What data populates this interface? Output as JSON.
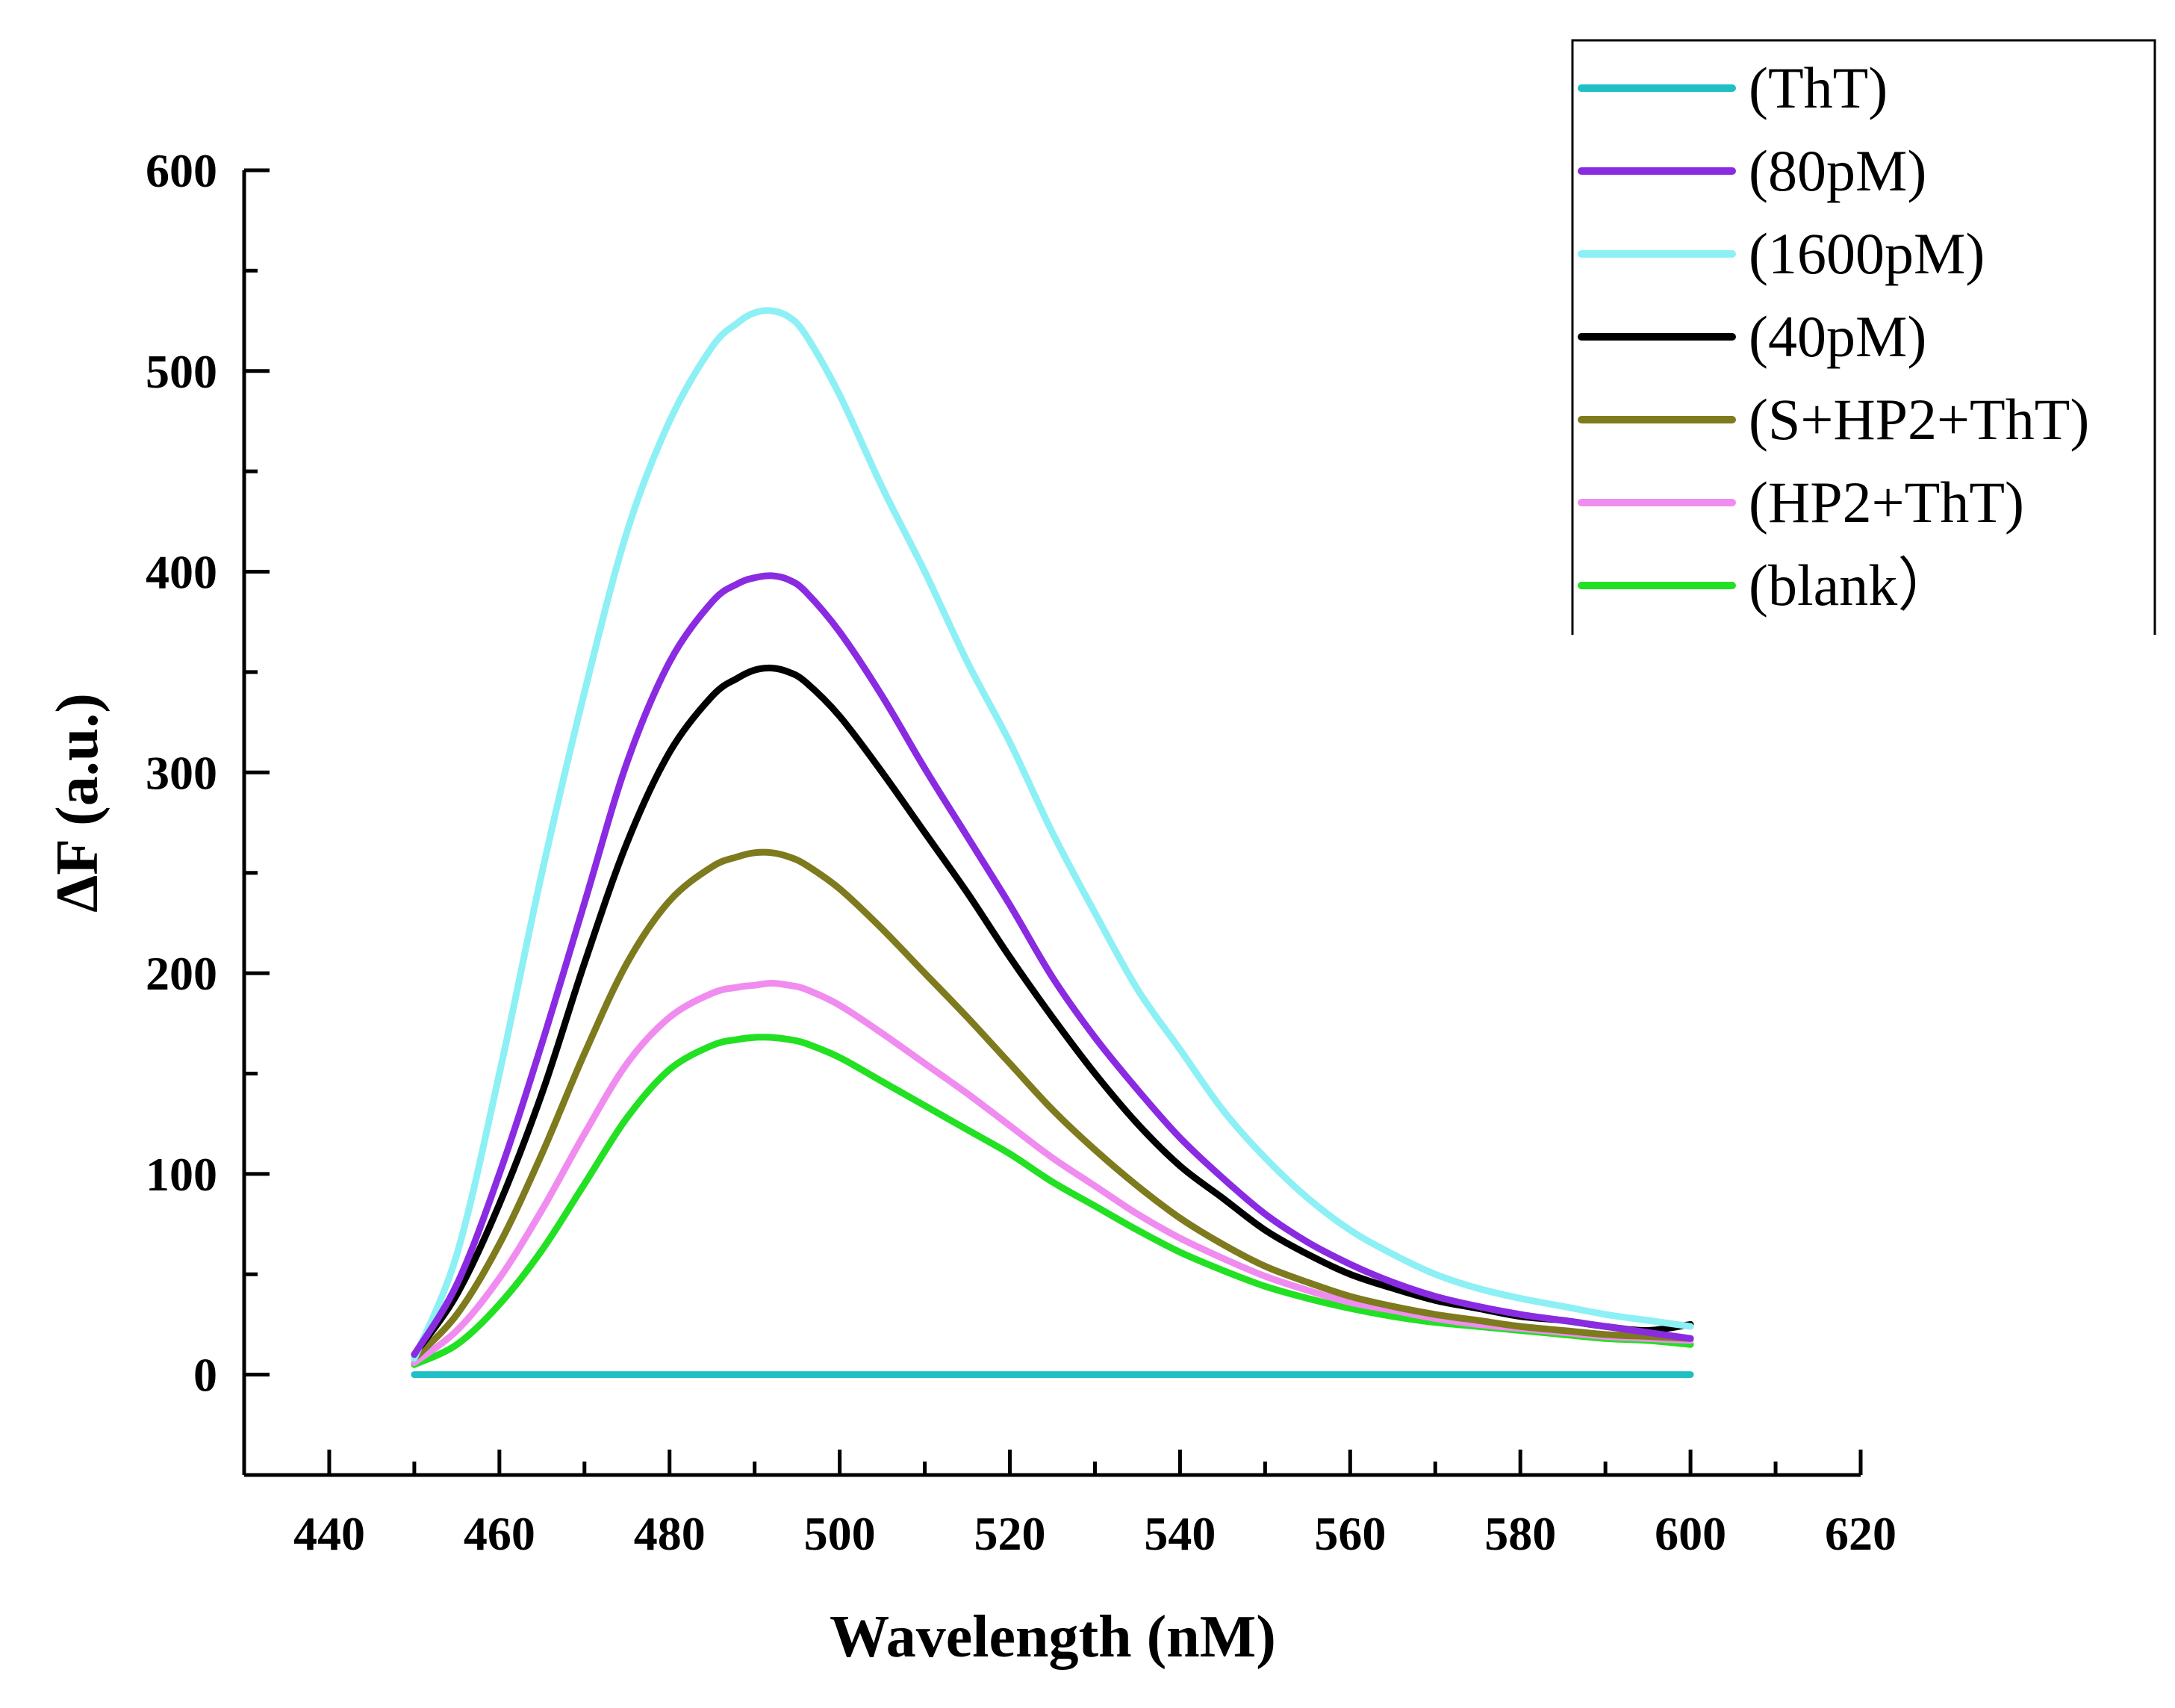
{
  "chart_data": {
    "type": "line",
    "title": "",
    "xlabel": "Wavelength (nM)",
    "ylabel": "ΔF (a.u.)",
    "xlim": [
      430,
      620
    ],
    "ylim": [
      -50,
      600
    ],
    "xticks": [
      440,
      460,
      480,
      500,
      520,
      540,
      560,
      580,
      600,
      620
    ],
    "yticks": [
      0,
      100,
      200,
      300,
      400,
      500,
      600
    ],
    "grid": false,
    "legend_position": "top-right",
    "series": [
      {
        "name": "(ThT)",
        "color": "#1fbfc4",
        "x": [
          450,
          600
        ],
        "y": [
          0,
          0
        ]
      },
      {
        "name": "(80pM)",
        "color": "#8a2be2",
        "x": [
          450,
          455,
          460,
          465,
          470,
          475,
          480,
          485,
          488,
          490,
          492,
          494,
          496,
          500,
          505,
          510,
          515,
          520,
          525,
          530,
          535,
          540,
          545,
          550,
          555,
          560,
          565,
          570,
          575,
          580,
          585,
          590,
          595,
          600
        ],
        "y": [
          10,
          45,
          100,
          165,
          235,
          305,
          355,
          385,
          394,
          397,
          398,
          396,
          390,
          370,
          338,
          302,
          268,
          234,
          198,
          168,
          142,
          118,
          98,
          80,
          66,
          55,
          46,
          39,
          34,
          30,
          27,
          24,
          21,
          18
        ]
      },
      {
        "name": "(1600pM)",
        "color": "#8cf0f5",
        "x": [
          450,
          455,
          460,
          465,
          470,
          475,
          480,
          485,
          488,
          490,
          492,
          494,
          496,
          500,
          505,
          510,
          515,
          520,
          525,
          530,
          535,
          540,
          545,
          550,
          555,
          560,
          565,
          570,
          575,
          580,
          585,
          590,
          595,
          600
        ],
        "y": [
          8,
          60,
          150,
          250,
          340,
          420,
          475,
          512,
          524,
          529,
          530,
          527,
          518,
          488,
          442,
          400,
          355,
          315,
          270,
          230,
          192,
          162,
          132,
          108,
          88,
          72,
          60,
          50,
          43,
          38,
          34,
          30,
          27,
          24
        ]
      },
      {
        "name": "(40pM)",
        "color": "#000000",
        "x": [
          450,
          455,
          460,
          465,
          470,
          475,
          480,
          485,
          488,
          490,
          492,
          494,
          496,
          500,
          505,
          510,
          515,
          520,
          525,
          530,
          535,
          540,
          545,
          550,
          555,
          560,
          565,
          570,
          575,
          580,
          585,
          590,
          595,
          600
        ],
        "y": [
          10,
          40,
          85,
          140,
          205,
          265,
          310,
          338,
          347,
          351,
          352,
          350,
          345,
          328,
          300,
          270,
          240,
          208,
          178,
          150,
          125,
          104,
          88,
          72,
          60,
          50,
          43,
          37,
          33,
          29,
          27,
          24,
          22,
          25
        ]
      },
      {
        "name": "(S+HP2+ThT)",
        "color": "#7e7a1e",
        "x": [
          450,
          455,
          460,
          465,
          470,
          475,
          480,
          485,
          488,
          490,
          492,
          494,
          496,
          500,
          505,
          510,
          515,
          520,
          525,
          530,
          535,
          540,
          545,
          550,
          555,
          560,
          565,
          570,
          575,
          580,
          585,
          590,
          595,
          600
        ],
        "y": [
          8,
          30,
          65,
          110,
          160,
          205,
          236,
          253,
          258,
          260,
          260,
          258,
          254,
          242,
          222,
          200,
          178,
          155,
          132,
          112,
          94,
          78,
          65,
          54,
          46,
          39,
          34,
          30,
          27,
          24,
          22,
          20,
          19,
          18
        ]
      },
      {
        "name": "(HP2+ThT)",
        "color": "#f08cf0",
        "x": [
          450,
          455,
          460,
          465,
          470,
          475,
          480,
          485,
          488,
          490,
          492,
          494,
          496,
          500,
          505,
          510,
          515,
          520,
          525,
          530,
          535,
          540,
          545,
          550,
          555,
          560,
          565,
          570,
          575,
          580,
          585,
          590,
          595,
          600
        ],
        "y": [
          6,
          22,
          48,
          82,
          120,
          155,
          178,
          190,
          193,
          194,
          195,
          194,
          192,
          184,
          170,
          155,
          140,
          124,
          108,
          94,
          80,
          68,
          58,
          49,
          42,
          36,
          32,
          28,
          25,
          23,
          21,
          19,
          18,
          17
        ]
      },
      {
        "name": "(blank）",
        "color": "#22e022",
        "x": [
          450,
          455,
          460,
          465,
          470,
          475,
          480,
          485,
          488,
          490,
          492,
          494,
          496,
          500,
          505,
          510,
          515,
          520,
          525,
          530,
          535,
          540,
          545,
          550,
          555,
          560,
          565,
          570,
          575,
          580,
          585,
          590,
          595,
          600
        ],
        "y": [
          5,
          15,
          35,
          62,
          95,
          128,
          152,
          164,
          167,
          168,
          168,
          167,
          165,
          158,
          146,
          134,
          122,
          110,
          96,
          84,
          72,
          61,
          52,
          44,
          38,
          33,
          29,
          26,
          24,
          22,
          20,
          18,
          17,
          15
        ]
      }
    ]
  }
}
